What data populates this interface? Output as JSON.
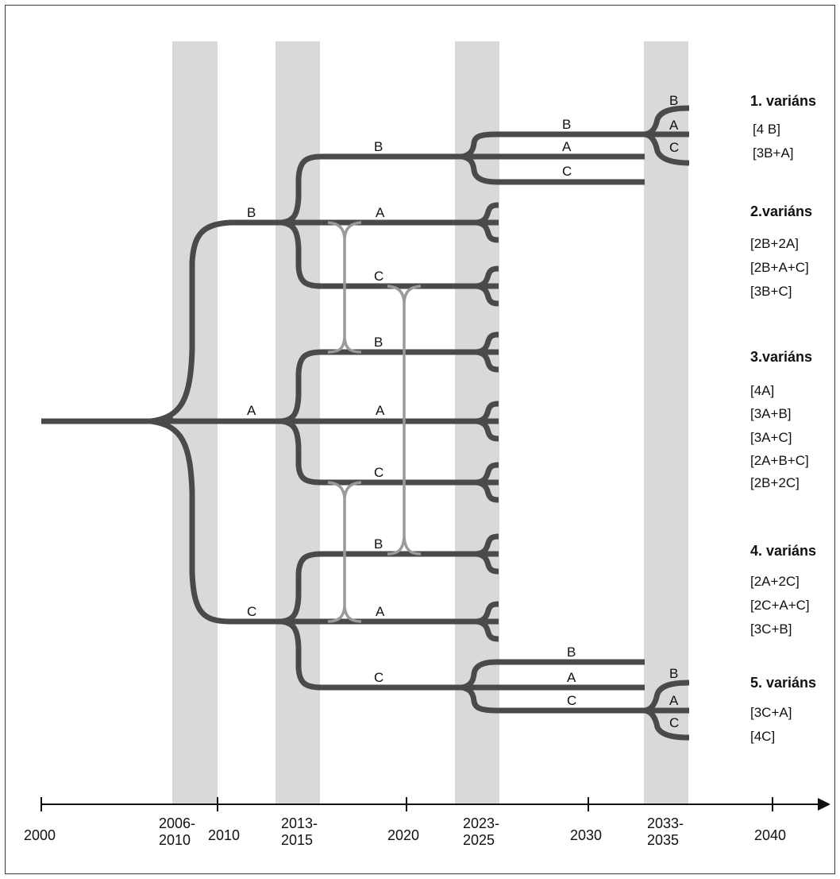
{
  "axis_labels": {
    "y2000": "2000",
    "p2006_2010": [
      "2006-",
      "2010"
    ],
    "y2010": "2010",
    "p2013_2015": [
      "2013-",
      "2015"
    ],
    "y2020": "2020",
    "p2023_2025": [
      "2023-",
      "2025"
    ],
    "y2030": "2030",
    "p2033_2035": [
      "2033-",
      "2035"
    ],
    "y2040": "2040"
  },
  "branch_labels": {
    "l1_b": "B",
    "l1_a": "A",
    "l1_c": "C",
    "l2_b_b": "B",
    "l2_b_a": "A",
    "l2_b_c": "C",
    "l2_a_b": "B",
    "l2_a_a": "A",
    "l2_a_c": "C",
    "l2_c_b": "B",
    "l2_c_a": "A",
    "l2_c_c": "C",
    "l3_top_b": "B",
    "l3_top_a": "A",
    "l3_top_c": "C",
    "l3_bot_b": "B",
    "l3_bot_a": "A",
    "l3_bot_c": "C",
    "l4_top_b": "B",
    "l4_top_a": "A",
    "l4_top_c": "C",
    "l4_bot_b": "B",
    "l4_bot_a": "A",
    "l4_bot_c": "C"
  },
  "variants": [
    {
      "title": "1. variáns",
      "items": [
        "[4 B]",
        "[3B+A]"
      ]
    },
    {
      "title": "2.variáns",
      "items": [
        "[2B+2A]",
        "[2B+A+C]",
        "[3B+C]"
      ]
    },
    {
      "title": "3.variáns",
      "items": [
        "[4A]",
        "[3A+B]",
        "[3A+C]",
        "[2A+B+C]",
        "[2B+2C]"
      ]
    },
    {
      "title": "4. variáns",
      "items": [
        "[2A+2C]",
        "[2C+A+C]",
        "[3C+B]"
      ]
    },
    {
      "title": "5. variáns",
      "items": [
        "[3C+A]",
        "[4C]"
      ]
    }
  ],
  "colors": {
    "band": "#d9d9d9",
    "branch": "#4a4a4a",
    "connector": "#9a9a9a",
    "axis": "#111111"
  }
}
